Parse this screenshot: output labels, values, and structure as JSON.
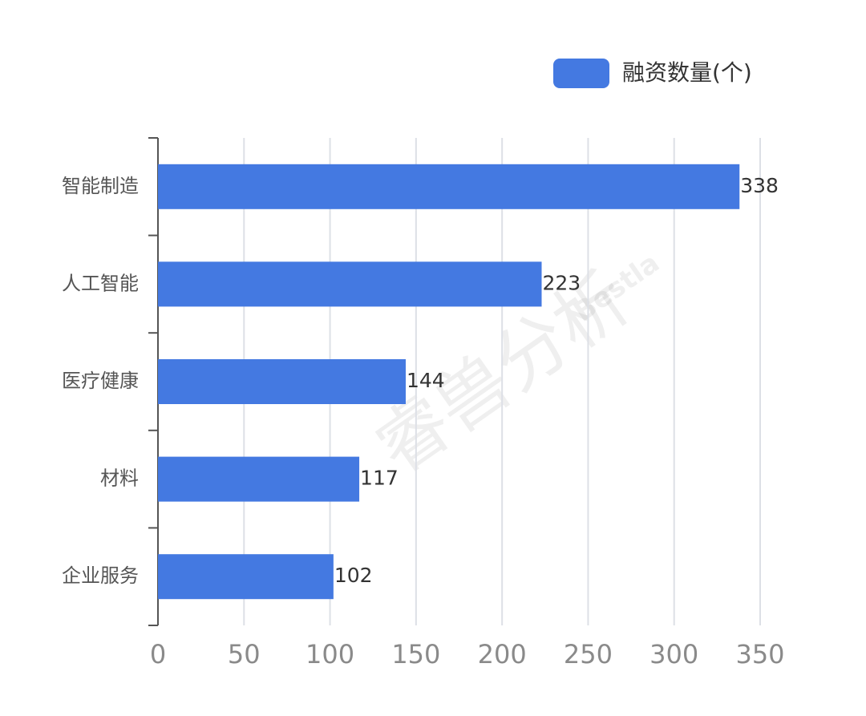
{
  "chart_data": {
    "type": "bar",
    "orientation": "horizontal",
    "legend": "融资数量(个)",
    "legend_position": "top-right",
    "categories": [
      "智能制造",
      "人工智能",
      "医疗健康",
      "材料",
      "企业服务"
    ],
    "values": [
      338,
      223,
      144,
      117,
      102
    ],
    "color": "#4479e1",
    "xlim": [
      0,
      350
    ],
    "xticks": [
      0,
      50,
      100,
      150,
      200,
      250,
      300,
      350
    ],
    "grid": true,
    "watermark": "睿兽分析",
    "watermark_sub": "Bestla"
  }
}
